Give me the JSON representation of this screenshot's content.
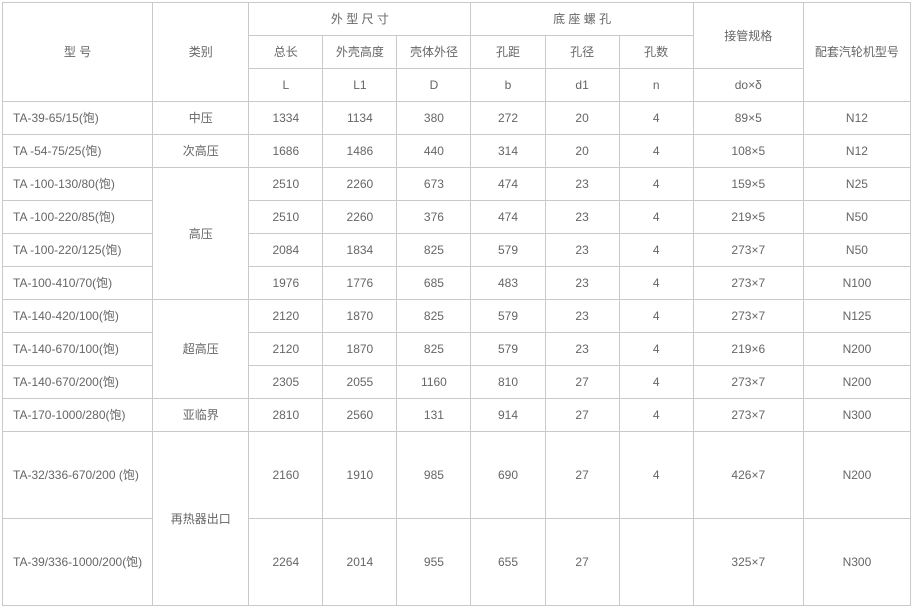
{
  "table": {
    "type": "table",
    "border_color": "#c9c9c9",
    "text_color": "#666666",
    "background_color": "#ffffff",
    "font_size_pt": 9,
    "header": {
      "model": "型  号",
      "category": "类别",
      "dims_group": "外 型 尺 寸",
      "holes_group": "底 座 螺 孔",
      "pipe": "接管规格",
      "turbine": "配套汽轮机型号",
      "dim_labels": [
        "总长",
        "外壳高度",
        "壳体外径"
      ],
      "dim_symbols": [
        "L",
        "L1",
        "D"
      ],
      "hole_labels": [
        "孔距",
        "孔径",
        "孔数"
      ],
      "hole_symbols": [
        "b",
        "d1",
        "n"
      ],
      "pipe_symbol": "do×δ"
    },
    "categories": {
      "zhongya": "中压",
      "cigaoya": "次高压",
      "gaoya": "高压",
      "chaogaoya": "超高压",
      "yalinjie": "亚临界",
      "zaireqi": "再热器出口"
    },
    "rows": [
      {
        "model": "TA-39-65/15(饱)",
        "L": "1334",
        "L1": "1134",
        "D": "380",
        "b": "272",
        "d1": "20",
        "n": "4",
        "pipe": "89×5",
        "turbine": "N12"
      },
      {
        "model": "TA -54-75/25(饱)",
        "L": "1686",
        "L1": "1486",
        "D": "440",
        "b": "314",
        "d1": "20",
        "n": "4",
        "pipe": "108×5",
        "turbine": "N12"
      },
      {
        "model": "TA -100-130/80(饱)",
        "L": "2510",
        "L1": "2260",
        "D": "673",
        "b": "474",
        "d1": "23",
        "n": "4",
        "pipe": "159×5",
        "turbine": "N25"
      },
      {
        "model": "TA -100-220/85(饱)",
        "L": "2510",
        "L1": "2260",
        "D": "376",
        "b": "474",
        "d1": "23",
        "n": "4",
        "pipe": "219×5",
        "turbine": "N50"
      },
      {
        "model": "TA -100-220/125(饱)",
        "L": "2084",
        "L1": "1834",
        "D": "825",
        "b": "579",
        "d1": "23",
        "n": "4",
        "pipe": "273×7",
        "turbine": "N50"
      },
      {
        "model": "TA-100-410/70(饱)",
        "L": "1976",
        "L1": "1776",
        "D": "685",
        "b": "483",
        "d1": "23",
        "n": "4",
        "pipe": "273×7",
        "turbine": "N100"
      },
      {
        "model": "TA-140-420/100(饱)",
        "L": "2120",
        "L1": "1870",
        "D": "825",
        "b": "579",
        "d1": "23",
        "n": "4",
        "pipe": "273×7",
        "turbine": "N125"
      },
      {
        "model": "TA-140-670/100(饱)",
        "L": "2120",
        "L1": "1870",
        "D": "825",
        "b": "579",
        "d1": "23",
        "n": "4",
        "pipe": "219×6",
        "turbine": "N200"
      },
      {
        "model": "TA-140-670/200(饱)",
        "L": "2305",
        "L1": "2055",
        "D": "1160",
        "b": "810",
        "d1": "27",
        "n": "4",
        "pipe": "273×7",
        "turbine": "N200"
      },
      {
        "model": "TA-170-1000/280(饱)",
        "L": "2810",
        "L1": "2560",
        "D": "131",
        "b": "914",
        "d1": "27",
        "n": "4",
        "pipe": "273×7",
        "turbine": "N300"
      },
      {
        "model": "TA-32/336-670/200 (饱)",
        "L": "2160",
        "L1": "1910",
        "D": "985",
        "b": "690",
        "d1": "27",
        "n": "4",
        "pipe": "426×7",
        "turbine": "N200"
      },
      {
        "model": "TA-39/336-1000/200(饱)",
        "L": "2264",
        "L1": "2014",
        "D": "955",
        "b": "655",
        "d1": "27",
        "n": "",
        "pipe": "325×7",
        "turbine": "N300"
      }
    ]
  }
}
